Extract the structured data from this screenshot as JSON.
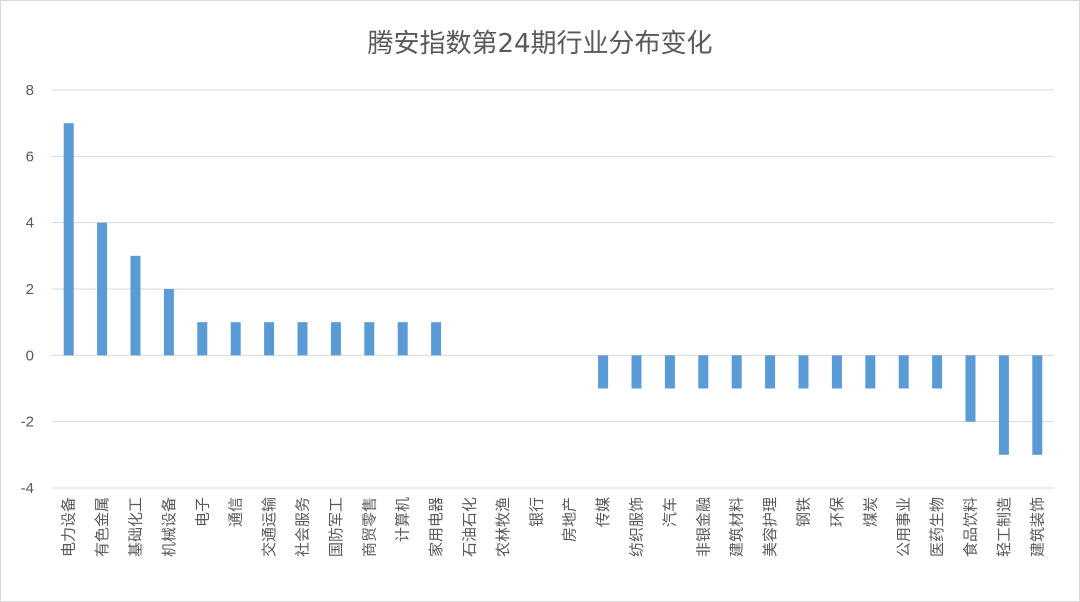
{
  "chart_data": {
    "type": "bar",
    "title": "腾安指数第24期行业分布变化",
    "xlabel": "",
    "ylabel": "",
    "ylim": [
      -4,
      8
    ],
    "yticks": [
      -4,
      -2,
      0,
      2,
      4,
      6,
      8
    ],
    "grid": true,
    "legend": "none",
    "bar_color": "#5b9bd5",
    "categories": [
      "电力设备",
      "有色金属",
      "基础化工",
      "机械设备",
      "电子",
      "通信",
      "交通运输",
      "社会服务",
      "国防军工",
      "商贸零售",
      "计算机",
      "家用电器",
      "石油石化",
      "农林牧渔",
      "银行",
      "房地产",
      "传媒",
      "纺织服饰",
      "汽车",
      "非银金融",
      "建筑材料",
      "美容护理",
      "钢铁",
      "环保",
      "煤炭",
      "公用事业",
      "医药生物",
      "食品饮料",
      "轻工制造",
      "建筑装饰"
    ],
    "values": [
      7,
      4,
      3,
      2,
      1,
      1,
      1,
      1,
      1,
      1,
      1,
      1,
      0,
      0,
      0,
      0,
      -1,
      -1,
      -1,
      -1,
      -1,
      -1,
      -1,
      -1,
      -1,
      -1,
      -1,
      -2,
      -3,
      -3
    ]
  }
}
